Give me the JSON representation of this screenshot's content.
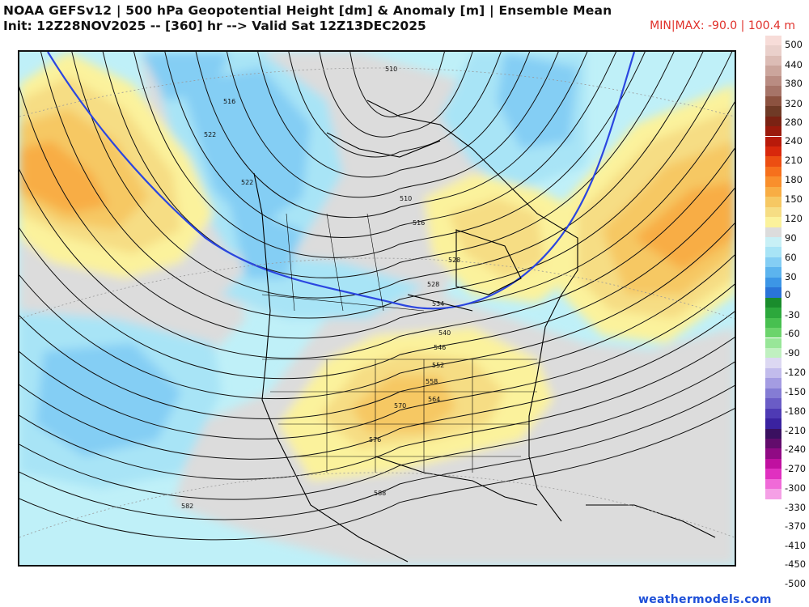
{
  "header": {
    "title": "NOAA GEFSv12 | 500 hPa Geopotential Height [dm] & Anomaly [m] | Ensemble Mean",
    "subtitle": "Init: 12Z28NOV2025 -- [360] hr --> Valid Sat 12Z13DEC2025",
    "minmax": "MIN|MAX: -90.0 | 100.4 m"
  },
  "colorbar": {
    "labels": [
      "500",
      "440",
      "380",
      "320",
      "280",
      "240",
      "210",
      "180",
      "150",
      "120",
      "90",
      "60",
      "30",
      "0",
      "-30",
      "-60",
      "-90",
      "-120",
      "-150",
      "-180",
      "-210",
      "-240",
      "-270",
      "-300",
      "-330",
      "-370",
      "-410",
      "-450",
      "-500"
    ],
    "colors": [
      "#f7dcd8",
      "#ead0cb",
      "#dcbcb5",
      "#cba59c",
      "#b98c82",
      "#a67468",
      "#8c5240",
      "#6f3a26",
      "#7a2213",
      "#9a1a0c",
      "#b81a0a",
      "#d8280c",
      "#ec4e12",
      "#f6701c",
      "#f98f2c",
      "#f8ad44",
      "#f6c863",
      "#f6dd84",
      "#fbf29c",
      "#dcdcdc",
      "#c8f0f6",
      "#a8e4f6",
      "#84cef4",
      "#5cb4ee",
      "#3c96e6",
      "#2a74d8",
      "#1a8c2c",
      "#2ca83c",
      "#48c050",
      "#6cd46c",
      "#98e698",
      "#c0f0c0",
      "#dcd8f2",
      "#c2bcec",
      "#a49ce2",
      "#847cd4",
      "#6a5cc6",
      "#4e3ab4",
      "#3a22a0",
      "#3a1060",
      "#620c6c",
      "#900a84",
      "#c010a0",
      "#e030c0",
      "#f06ad8",
      "#f5a0e6"
    ],
    "selected_palette_note": ""
  },
  "map": {
    "contour_labels": [
      "510",
      "516",
      "522",
      "528",
      "534",
      "540",
      "546",
      "552",
      "558",
      "564",
      "570",
      "576",
      "582",
      "522",
      "516",
      "510",
      "528",
      "588"
    ],
    "features": [
      "coastlines",
      "state-borders",
      "height-contours",
      "anomaly-shading",
      "5640-line"
    ]
  },
  "footer": {
    "credit": "weathermodels.com"
  }
}
